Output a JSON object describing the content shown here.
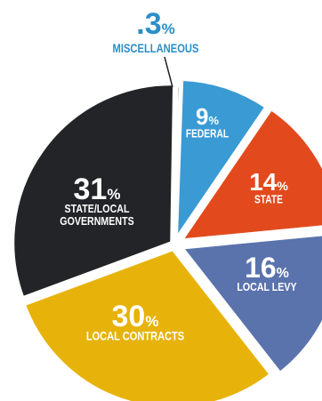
{
  "chart_data": {
    "type": "pie",
    "title": "",
    "slices": [
      {
        "label": "FEDERAL",
        "value": 9,
        "value_text": "9",
        "unit": "%",
        "color": "#3a9ad4"
      },
      {
        "label": "STATE",
        "value": 14,
        "value_text": "14",
        "unit": "%",
        "color": "#e24a1d"
      },
      {
        "label": "LOCAL LEVY",
        "value": 16,
        "value_text": "16",
        "unit": "%",
        "color": "#5a73ad"
      },
      {
        "label": "LOCAL CONTRACTS",
        "value": 30,
        "value_text": "30",
        "unit": "%",
        "color": "#e7b30b"
      },
      {
        "label": "STATE/LOCAL GOVERNMENTS",
        "label_lines": [
          "STATE/LOCAL",
          "GOVERNMENTS"
        ],
        "value": 31,
        "value_text": "31",
        "unit": "%",
        "color": "#222427"
      },
      {
        "label": "MISCELLANEOUS",
        "value": 0.3,
        "value_text": ".3",
        "unit": "%",
        "color": "#222427"
      }
    ],
    "misc_text_color": "#2a8fc8"
  }
}
